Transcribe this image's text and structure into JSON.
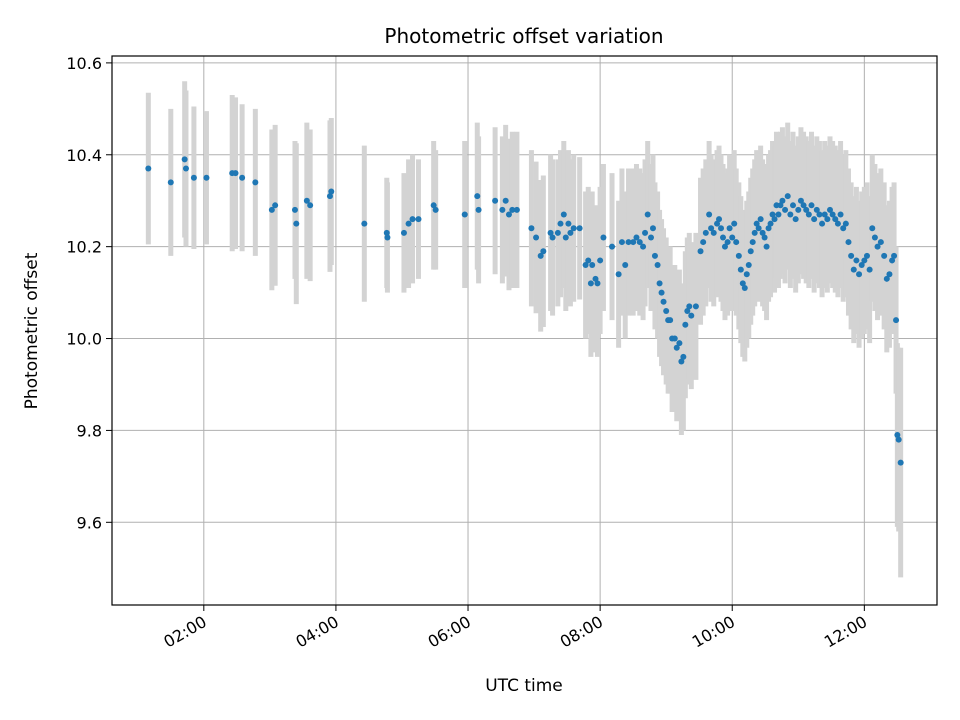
{
  "chart_data": {
    "type": "scatter",
    "title": "Photometric offset variation",
    "xlabel": "UTC time",
    "ylabel": "Photometric offset",
    "x_unit": "hours UTC",
    "xlim": [
      0.61,
      13.1
    ],
    "ylim": [
      9.42,
      10.615
    ],
    "x_ticks": [
      {
        "value": 2,
        "label": "02:00"
      },
      {
        "value": 4,
        "label": "04:00"
      },
      {
        "value": 6,
        "label": "06:00"
      },
      {
        "value": 8,
        "label": "08:00"
      },
      {
        "value": 10,
        "label": "10:00"
      },
      {
        "value": 12,
        "label": "12:00"
      }
    ],
    "y_ticks": [
      {
        "value": 9.6,
        "label": "9.6"
      },
      {
        "value": 9.8,
        "label": "9.8"
      },
      {
        "value": 10.0,
        "label": "10.0"
      },
      {
        "value": 10.2,
        "label": "10.2"
      },
      {
        "value": 10.4,
        "label": "10.4"
      },
      {
        "value": 10.6,
        "label": "10.6"
      }
    ],
    "grid": true,
    "marker_color": "#1f77b4",
    "errorbar_color": "#d3d3d3",
    "points": [
      [
        1.16,
        10.37,
        0.165
      ],
      [
        1.5,
        10.34,
        0.16
      ],
      [
        1.71,
        10.39,
        0.17
      ],
      [
        1.73,
        10.37,
        0.17
      ],
      [
        1.85,
        10.35,
        0.155
      ],
      [
        2.04,
        10.35,
        0.145
      ],
      [
        2.43,
        10.36,
        0.17
      ],
      [
        2.48,
        10.36,
        0.165
      ],
      [
        2.58,
        10.35,
        0.16
      ],
      [
        2.78,
        10.34,
        0.16
      ],
      [
        3.03,
        10.28,
        0.175
      ],
      [
        3.08,
        10.29,
        0.175
      ],
      [
        3.38,
        10.28,
        0.15
      ],
      [
        3.4,
        10.25,
        0.175
      ],
      [
        3.56,
        10.3,
        0.17
      ],
      [
        3.61,
        10.29,
        0.165
      ],
      [
        3.91,
        10.31,
        0.165
      ],
      [
        3.93,
        10.32,
        0.16
      ],
      [
        4.43,
        10.25,
        0.17
      ],
      [
        4.77,
        10.23,
        0.12
      ],
      [
        4.78,
        10.22,
        0.12
      ],
      [
        5.03,
        10.23,
        0.13
      ],
      [
        5.1,
        10.25,
        0.14
      ],
      [
        5.16,
        10.26,
        0.14
      ],
      [
        5.25,
        10.26,
        0.13
      ],
      [
        5.48,
        10.29,
        0.14
      ],
      [
        5.51,
        10.28,
        0.13
      ],
      [
        5.95,
        10.27,
        0.16
      ],
      [
        6.14,
        10.31,
        0.16
      ],
      [
        6.16,
        10.28,
        0.16
      ],
      [
        6.41,
        10.3,
        0.16
      ],
      [
        6.52,
        10.28,
        0.16
      ],
      [
        6.57,
        10.3,
        0.165
      ],
      [
        6.62,
        10.27,
        0.165
      ],
      [
        6.67,
        10.28,
        0.17
      ],
      [
        6.74,
        10.28,
        0.17
      ],
      [
        6.96,
        10.24,
        0.17
      ],
      [
        7.03,
        10.22,
        0.165
      ],
      [
        7.1,
        10.18,
        0.165
      ],
      [
        7.14,
        10.19,
        0.165
      ],
      [
        7.25,
        10.23,
        0.17
      ],
      [
        7.28,
        10.22,
        0.17
      ],
      [
        7.36,
        10.23,
        0.16
      ],
      [
        7.4,
        10.25,
        0.16
      ],
      [
        7.45,
        10.27,
        0.16
      ],
      [
        7.48,
        10.22,
        0.16
      ],
      [
        7.52,
        10.25,
        0.16
      ],
      [
        7.55,
        10.23,
        0.16
      ],
      [
        7.6,
        10.24,
        0.16
      ],
      [
        7.69,
        10.24,
        0.155
      ],
      [
        7.78,
        10.16,
        0.16
      ],
      [
        7.82,
        10.17,
        0.16
      ],
      [
        7.86,
        10.12,
        0.16
      ],
      [
        7.88,
        10.16,
        0.16
      ],
      [
        7.93,
        10.13,
        0.16
      ],
      [
        7.96,
        10.12,
        0.16
      ],
      [
        8.0,
        10.17,
        0.16
      ],
      [
        8.05,
        10.22,
        0.16
      ],
      [
        8.18,
        10.2,
        0.16
      ],
      [
        8.28,
        10.14,
        0.16
      ],
      [
        8.33,
        10.21,
        0.16
      ],
      [
        8.38,
        10.16,
        0.16
      ],
      [
        8.43,
        10.21,
        0.16
      ],
      [
        8.5,
        10.21,
        0.16
      ],
      [
        8.55,
        10.22,
        0.16
      ],
      [
        8.6,
        10.21,
        0.16
      ],
      [
        8.65,
        10.2,
        0.16
      ],
      [
        8.68,
        10.23,
        0.16
      ],
      [
        8.72,
        10.27,
        0.16
      ],
      [
        8.77,
        10.22,
        0.16
      ],
      [
        8.8,
        10.24,
        0.16
      ],
      [
        8.83,
        10.18,
        0.16
      ],
      [
        8.87,
        10.16,
        0.16
      ],
      [
        8.9,
        10.12,
        0.16
      ],
      [
        8.93,
        10.1,
        0.16
      ],
      [
        8.96,
        10.08,
        0.16
      ],
      [
        9.0,
        10.06,
        0.16
      ],
      [
        9.03,
        10.04,
        0.16
      ],
      [
        9.06,
        10.04,
        0.16
      ],
      [
        9.09,
        10.0,
        0.16
      ],
      [
        9.13,
        10.0,
        0.16
      ],
      [
        9.16,
        9.98,
        0.16
      ],
      [
        9.2,
        9.99,
        0.16
      ],
      [
        9.23,
        9.95,
        0.16
      ],
      [
        9.26,
        9.96,
        0.16
      ],
      [
        9.29,
        10.03,
        0.16
      ],
      [
        9.32,
        10.06,
        0.16
      ],
      [
        9.35,
        10.07,
        0.16
      ],
      [
        9.38,
        10.05,
        0.16
      ],
      [
        9.45,
        10.07,
        0.16
      ],
      [
        9.52,
        10.19,
        0.16
      ],
      [
        9.56,
        10.21,
        0.16
      ],
      [
        9.6,
        10.23,
        0.16
      ],
      [
        9.65,
        10.27,
        0.16
      ],
      [
        9.68,
        10.24,
        0.16
      ],
      [
        9.72,
        10.23,
        0.16
      ],
      [
        9.77,
        10.25,
        0.16
      ],
      [
        9.8,
        10.26,
        0.16
      ],
      [
        9.83,
        10.24,
        0.16
      ],
      [
        9.86,
        10.22,
        0.16
      ],
      [
        9.89,
        10.2,
        0.16
      ],
      [
        9.93,
        10.21,
        0.16
      ],
      [
        9.96,
        10.24,
        0.16
      ],
      [
        10.0,
        10.22,
        0.16
      ],
      [
        10.03,
        10.25,
        0.16
      ],
      [
        10.06,
        10.21,
        0.16
      ],
      [
        10.1,
        10.18,
        0.16
      ],
      [
        10.13,
        10.15,
        0.16
      ],
      [
        10.16,
        10.12,
        0.16
      ],
      [
        10.19,
        10.11,
        0.16
      ],
      [
        10.22,
        10.14,
        0.16
      ],
      [
        10.25,
        10.16,
        0.16
      ],
      [
        10.28,
        10.19,
        0.16
      ],
      [
        10.31,
        10.21,
        0.16
      ],
      [
        10.34,
        10.23,
        0.16
      ],
      [
        10.37,
        10.25,
        0.16
      ],
      [
        10.4,
        10.24,
        0.16
      ],
      [
        10.43,
        10.26,
        0.16
      ],
      [
        10.46,
        10.23,
        0.16
      ],
      [
        10.49,
        10.22,
        0.16
      ],
      [
        10.52,
        10.2,
        0.16
      ],
      [
        10.55,
        10.24,
        0.16
      ],
      [
        10.58,
        10.25,
        0.16
      ],
      [
        10.61,
        10.27,
        0.16
      ],
      [
        10.64,
        10.26,
        0.16
      ],
      [
        10.67,
        10.29,
        0.16
      ],
      [
        10.7,
        10.27,
        0.16
      ],
      [
        10.73,
        10.29,
        0.16
      ],
      [
        10.76,
        10.3,
        0.16
      ],
      [
        10.8,
        10.28,
        0.16
      ],
      [
        10.84,
        10.31,
        0.16
      ],
      [
        10.88,
        10.27,
        0.16
      ],
      [
        10.92,
        10.29,
        0.16
      ],
      [
        10.96,
        10.26,
        0.16
      ],
      [
        11.0,
        10.28,
        0.16
      ],
      [
        11.04,
        10.3,
        0.16
      ],
      [
        11.08,
        10.29,
        0.16
      ],
      [
        11.12,
        10.28,
        0.16
      ],
      [
        11.16,
        10.27,
        0.16
      ],
      [
        11.2,
        10.29,
        0.16
      ],
      [
        11.24,
        10.26,
        0.16
      ],
      [
        11.28,
        10.28,
        0.16
      ],
      [
        11.32,
        10.27,
        0.16
      ],
      [
        11.36,
        10.25,
        0.16
      ],
      [
        11.4,
        10.27,
        0.16
      ],
      [
        11.44,
        10.26,
        0.16
      ],
      [
        11.48,
        10.28,
        0.16
      ],
      [
        11.52,
        10.27,
        0.16
      ],
      [
        11.56,
        10.26,
        0.16
      ],
      [
        11.6,
        10.25,
        0.16
      ],
      [
        11.64,
        10.27,
        0.16
      ],
      [
        11.68,
        10.24,
        0.16
      ],
      [
        11.72,
        10.25,
        0.16
      ],
      [
        11.76,
        10.21,
        0.16
      ],
      [
        11.8,
        10.18,
        0.16
      ],
      [
        11.84,
        10.15,
        0.16
      ],
      [
        11.88,
        10.17,
        0.16
      ],
      [
        11.92,
        10.14,
        0.16
      ],
      [
        11.96,
        10.16,
        0.16
      ],
      [
        12.0,
        10.17,
        0.16
      ],
      [
        12.04,
        10.18,
        0.16
      ],
      [
        12.08,
        10.15,
        0.16
      ],
      [
        12.12,
        10.24,
        0.16
      ],
      [
        12.16,
        10.22,
        0.16
      ],
      [
        12.2,
        10.2,
        0.16
      ],
      [
        12.25,
        10.21,
        0.16
      ],
      [
        12.3,
        10.18,
        0.16
      ],
      [
        12.34,
        10.13,
        0.16
      ],
      [
        12.38,
        10.14,
        0.16
      ],
      [
        12.42,
        10.17,
        0.16
      ],
      [
        12.45,
        10.18,
        0.16
      ],
      [
        12.48,
        10.04,
        0.16
      ],
      [
        12.5,
        9.79,
        0.2
      ],
      [
        12.52,
        9.78,
        0.2
      ],
      [
        12.55,
        9.73,
        0.25
      ]
    ]
  }
}
